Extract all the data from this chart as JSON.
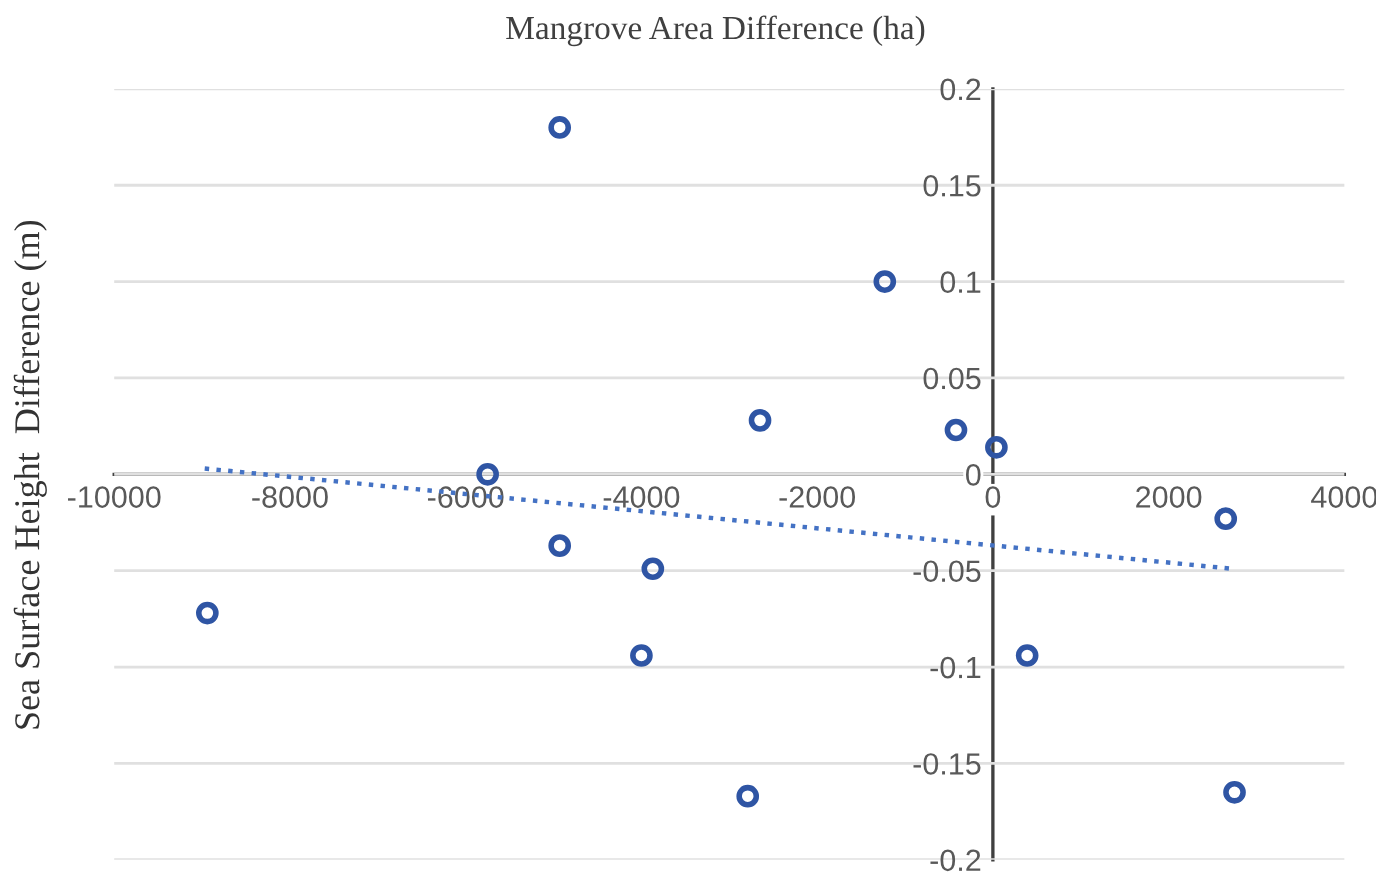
{
  "chart_data": {
    "type": "scatter",
    "xlabel": "Mangrove Area Difference (ha)",
    "ylabel": "Sea Surface Height  Difference (m)",
    "series": [
      {
        "color": "#2f55a4",
        "marker": "circle",
        "x": [
          -4930,
          -1230,
          -2650,
          -420,
          40,
          -5750,
          2650,
          -4930,
          -3870,
          -8940,
          -4000,
          390,
          -2790,
          2750
        ],
        "values": [
          0.18,
          0.1,
          0.028,
          0.023,
          0.014,
          0,
          -0.023,
          -0.037,
          -0.049,
          -0.072,
          -0.094,
          -0.094,
          -0.167,
          -0.165
        ]
      },
      {
        "type": "line",
        "color": "#4472c4",
        "line_style": "dotted",
        "marker": "none",
        "x": [
          -8970,
          2720
        ],
        "values": [
          0.003,
          -0.049
        ]
      }
    ],
    "xlim": [
      -10000,
      4000
    ],
    "xticks": [
      -10000,
      -8000,
      -6000,
      -4000,
      -2000,
      0,
      2000,
      4000
    ],
    "ylim": [
      -0.2,
      0.2
    ],
    "yticks": [
      -0.2,
      -0.15,
      -0.1,
      -0.05,
      0,
      0.05,
      0.1,
      0.15,
      0.2
    ],
    "grid": "y",
    "legend": false
  }
}
